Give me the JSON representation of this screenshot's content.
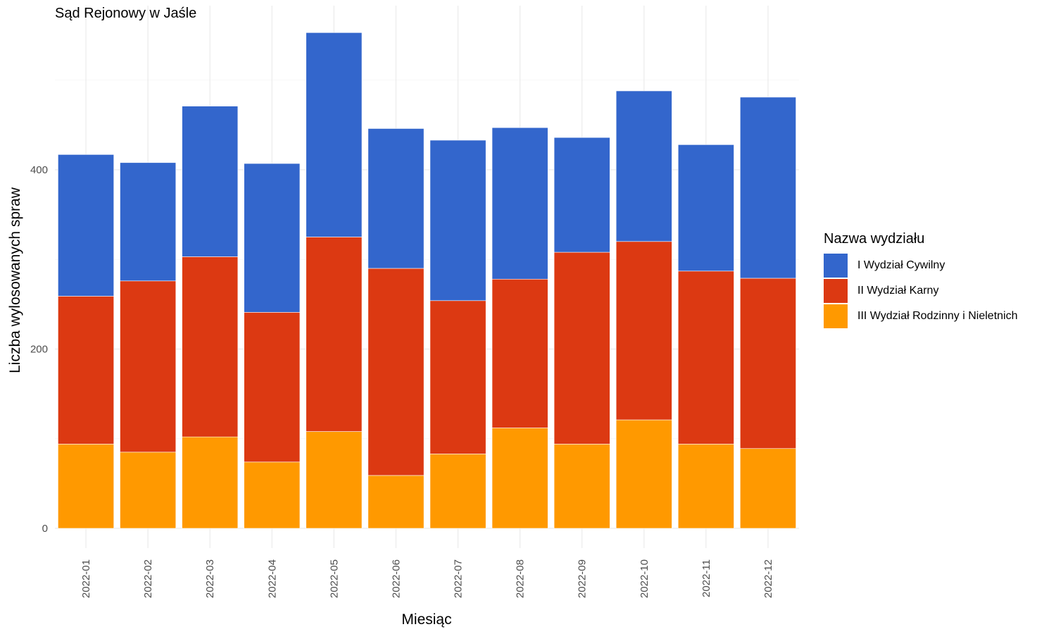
{
  "chart_data": {
    "type": "bar",
    "stacked": true,
    "title": "Sąd Rejonowy w Jaśle",
    "xlabel": "Miesiąc",
    "ylabel": "Liczba wylosowanych spraw",
    "ylim": [
      0,
      580
    ],
    "yticks": [
      0,
      200,
      400
    ],
    "grid": true,
    "legend_title": "Nazwa wydziału",
    "legend_position": "right",
    "categories": [
      "2022-01",
      "2022-02",
      "2022-03",
      "2022-04",
      "2022-05",
      "2022-06",
      "2022-07",
      "2022-08",
      "2022-09",
      "2022-10",
      "2022-11",
      "2022-12"
    ],
    "series": [
      {
        "name": "III Wydział Rodzinny i Nieletnich",
        "color": "#FF9900",
        "values": [
          94,
          85,
          102,
          74,
          108,
          59,
          83,
          112,
          94,
          121,
          94,
          89
        ]
      },
      {
        "name": "II Wydział Karny",
        "color": "#DC3912",
        "values": [
          165,
          191,
          201,
          167,
          217,
          231,
          171,
          166,
          214,
          199,
          193,
          190
        ]
      },
      {
        "name": "I Wydział Cywilny",
        "color": "#3366CC",
        "values": [
          158,
          132,
          168,
          166,
          228,
          156,
          179,
          169,
          128,
          168,
          141,
          202
        ]
      }
    ],
    "legend_order": [
      "I Wydział Cywilny",
      "II Wydział Karny",
      "III Wydział Rodzinny i Nieletnich"
    ]
  }
}
